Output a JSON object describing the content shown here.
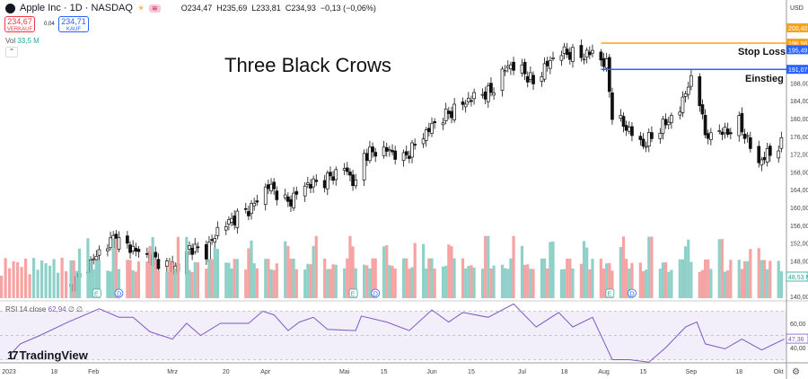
{
  "header": {
    "symbol": "Apple Inc · 1D · NASDAQ",
    "open": "O234,47",
    "high": "H235,69",
    "low": "L233,81",
    "close": "C234,93",
    "change": "−0,13 (−0,06%)",
    "sell_price": "234,67",
    "sell_label": "VERKAUF",
    "spread": "0,04",
    "buy_price": "234,71",
    "buy_label": "KAUF",
    "vol_label": "Vol",
    "vol_value": "33,5 M",
    "currency": "USD"
  },
  "annotations": {
    "title": "Three Black Crows",
    "stop_loss": "Stop Loss",
    "entry": "Einstieg"
  },
  "rsi": {
    "label": "RSI 14 close",
    "value": "62,94",
    "extra": "∅ ∅",
    "current": "47,36"
  },
  "branding": "TradingView",
  "colors": {
    "up": "#26a69a",
    "down": "#ef5350",
    "vol_up": "#8fd1c8",
    "vol_down": "#f5a3a3",
    "stop_line": "#f7a21b",
    "entry_line": "#2962ff",
    "rsi": "#7e57c2",
    "rsi_band": "#f3effa"
  },
  "chart_data": [
    {
      "type": "candlestick",
      "price_axis": [
        140,
        200.4
      ],
      "y_ticks": [
        "188,00",
        "184,00",
        "180,00",
        "176,00",
        "172,00",
        "168,00",
        "164,00",
        "160,00",
        "156,00",
        "152,00",
        "148,00",
        "140,00"
      ],
      "price_labels": [
        {
          "value": 200.4,
          "text": "200,40",
          "color": "#f7a21b"
        },
        {
          "value": 196.96,
          "text": "196,96",
          "color": "#f7a21b"
        },
        {
          "value": 195.49,
          "text": "195,49",
          "color": "#2962ff"
        },
        {
          "value": 191.07,
          "text": "191,07",
          "color": "#2962ff"
        }
      ],
      "horizontal_lines": [
        {
          "name": "Stop Loss",
          "value": 196.96,
          "from": "2023-08-01",
          "color": "#f7a21b"
        },
        {
          "name": "Einstieg",
          "value": 191.07,
          "from": "2023-08-01",
          "color": "#2962ff"
        }
      ],
      "volume_label": "48,53 M",
      "x_ticks": [
        {
          "date": "2023-01-02",
          "label": "2023"
        },
        {
          "date": "2023-01-18",
          "label": "18"
        },
        {
          "date": "2023-02-01",
          "label": "Feb"
        },
        {
          "date": "2023-03-01",
          "label": "Mrz"
        },
        {
          "date": "2023-03-20",
          "label": "20"
        },
        {
          "date": "2023-04-03",
          "label": "Apr"
        },
        {
          "date": "2023-05-01",
          "label": "Mai"
        },
        {
          "date": "2023-05-15",
          "label": "15"
        },
        {
          "date": "2023-06-01",
          "label": "Jun"
        },
        {
          "date": "2023-06-15",
          "label": "15"
        },
        {
          "date": "2023-07-03",
          "label": "Jul"
        },
        {
          "date": "2023-07-18",
          "label": "18"
        },
        {
          "date": "2023-08-01",
          "label": "Aug"
        },
        {
          "date": "2023-08-15",
          "label": "15"
        },
        {
          "date": "2023-09-01",
          "label": "Sep"
        },
        {
          "date": "2023-09-18",
          "label": "18"
        },
        {
          "date": "2023-10-02",
          "label": "Okt"
        }
      ],
      "events": [
        {
          "date": "2023-02-02",
          "type": "E"
        },
        {
          "date": "2023-02-10",
          "type": "D"
        },
        {
          "date": "2023-05-04",
          "type": "E"
        },
        {
          "date": "2023-05-12",
          "type": "D"
        },
        {
          "date": "2023-08-03",
          "type": "E"
        },
        {
          "date": "2023-08-11",
          "type": "D"
        }
      ],
      "close_points": [
        [
          "2023-01-24",
          142
        ],
        [
          "2023-02-03",
          150
        ],
        [
          "2023-02-08",
          153
        ],
        [
          "2023-02-17",
          150
        ],
        [
          "2023-02-27",
          147
        ],
        [
          "2023-03-03",
          146
        ],
        [
          "2023-03-07",
          151
        ],
        [
          "2023-03-13",
          150
        ],
        [
          "2023-03-17",
          155
        ],
        [
          "2023-03-24",
          158
        ],
        [
          "2023-03-29",
          160
        ],
        [
          "2023-04-04",
          165
        ],
        [
          "2023-04-11",
          161
        ],
        [
          "2023-04-17",
          165
        ],
        [
          "2023-04-24",
          166
        ],
        [
          "2023-05-01",
          169
        ],
        [
          "2023-05-05",
          165
        ],
        [
          "2023-05-08",
          172
        ],
        [
          "2023-05-16",
          173
        ],
        [
          "2023-05-22",
          171
        ],
        [
          "2023-05-26",
          174
        ],
        [
          "2023-06-02",
          179
        ],
        [
          "2023-06-09",
          182
        ],
        [
          "2023-06-16",
          185
        ],
        [
          "2023-06-22",
          186
        ],
        [
          "2023-06-28",
          192
        ],
        [
          "2023-07-03",
          191
        ],
        [
          "2023-07-07",
          188
        ],
        [
          "2023-07-13",
          193
        ],
        [
          "2023-07-17",
          195
        ],
        [
          "2023-07-24",
          194
        ],
        [
          "2023-07-28",
          195
        ],
        [
          "2023-08-02",
          192
        ],
        [
          "2023-08-04",
          181
        ],
        [
          "2023-08-09",
          178
        ],
        [
          "2023-08-15",
          174
        ],
        [
          "2023-08-18",
          176
        ],
        [
          "2023-08-23",
          179
        ],
        [
          "2023-08-28",
          182
        ],
        [
          "2023-08-31",
          188
        ],
        [
          "2023-09-01",
          188
        ],
        [
          "2023-09-05",
          182
        ],
        [
          "2023-09-06",
          175
        ],
        [
          "2023-09-08",
          177
        ],
        [
          "2023-09-14",
          177
        ],
        [
          "2023-09-18",
          179
        ],
        [
          "2023-09-21",
          175
        ],
        [
          "2023-09-25",
          170
        ],
        [
          "2023-09-28",
          172
        ],
        [
          "2023-10-03",
          174
        ]
      ]
    },
    {
      "type": "line",
      "name": "RSI 14 close",
      "y_ticks": [
        "60,00",
        "40,00"
      ],
      "levels": [
        70,
        50,
        30
      ],
      "points": [
        [
          "2023-01-02",
          33
        ],
        [
          "2023-01-06",
          43
        ],
        [
          "2023-01-13",
          50
        ],
        [
          "2023-01-23",
          61
        ],
        [
          "2023-01-28",
          66
        ],
        [
          "2023-02-03",
          72
        ],
        [
          "2023-02-10",
          65
        ],
        [
          "2023-02-15",
          65
        ],
        [
          "2023-02-21",
          53
        ],
        [
          "2023-03-01",
          47
        ],
        [
          "2023-03-06",
          60
        ],
        [
          "2023-03-11",
          50
        ],
        [
          "2023-03-18",
          60
        ],
        [
          "2023-03-28",
          60
        ],
        [
          "2023-04-02",
          70
        ],
        [
          "2023-04-06",
          67
        ],
        [
          "2023-04-11",
          54
        ],
        [
          "2023-04-15",
          61
        ],
        [
          "2023-04-20",
          65
        ],
        [
          "2023-04-25",
          55
        ],
        [
          "2023-05-05",
          54
        ],
        [
          "2023-05-07",
          66
        ],
        [
          "2023-05-16",
          61
        ],
        [
          "2023-05-24",
          54
        ],
        [
          "2023-06-01",
          71
        ],
        [
          "2023-06-07",
          61
        ],
        [
          "2023-06-12",
          69
        ],
        [
          "2023-06-21",
          65
        ],
        [
          "2023-06-30",
          76
        ],
        [
          "2023-07-08",
          57
        ],
        [
          "2023-07-16",
          69
        ],
        [
          "2023-07-21",
          57
        ],
        [
          "2023-07-28",
          65
        ],
        [
          "2023-08-04",
          30
        ],
        [
          "2023-08-10",
          30
        ],
        [
          "2023-08-17",
          28
        ],
        [
          "2023-08-23",
          40
        ],
        [
          "2023-08-30",
          57
        ],
        [
          "2023-09-03",
          61
        ],
        [
          "2023-09-06",
          43
        ],
        [
          "2023-09-13",
          39
        ],
        [
          "2023-09-19",
          47
        ],
        [
          "2023-09-26",
          38
        ],
        [
          "2023-10-04",
          47
        ]
      ]
    }
  ]
}
